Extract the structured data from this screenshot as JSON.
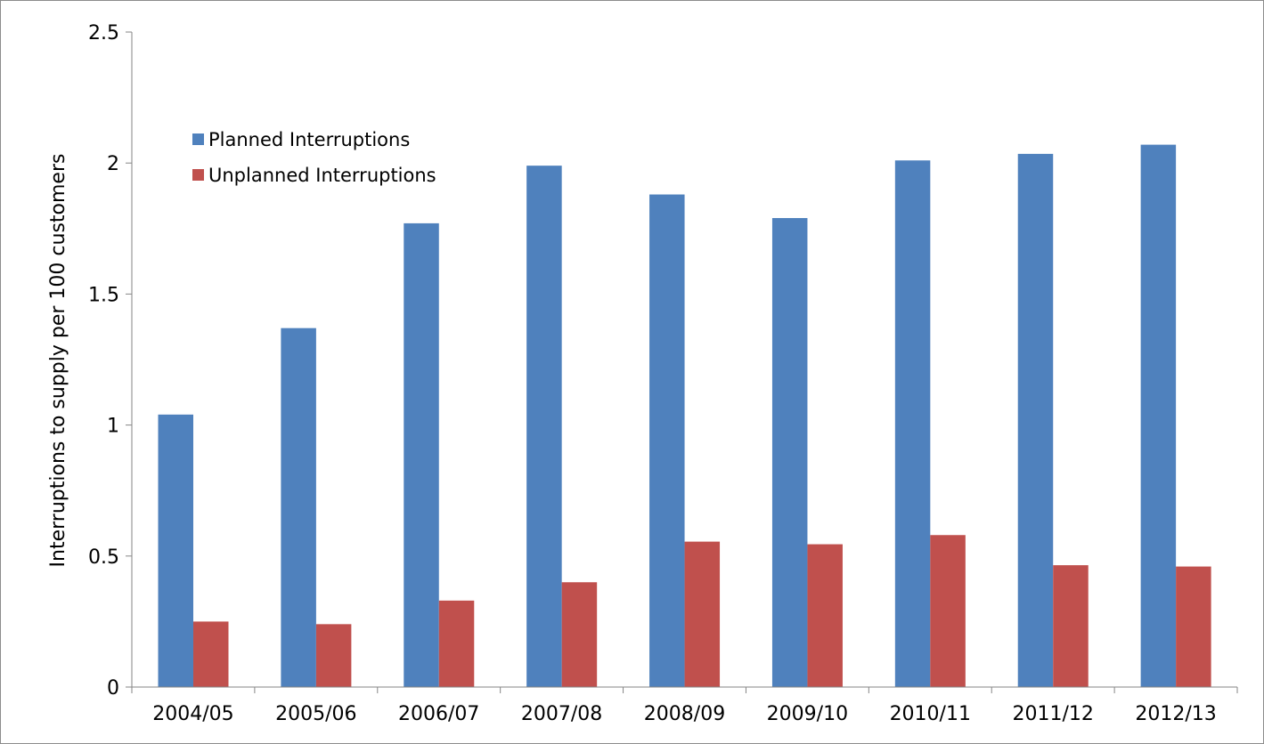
{
  "chart_data": {
    "type": "bar",
    "title": "",
    "xlabel": "",
    "ylabel": "Interruptions to supply per 100 customers",
    "ylim": [
      0,
      2.5
    ],
    "yticks": [
      "0",
      "0.5",
      "1",
      "1.5",
      "2",
      "2.5"
    ],
    "ytick_values": [
      0,
      0.5,
      1,
      1.5,
      2,
      2.5
    ],
    "grid": false,
    "legend_position": "top-left",
    "categories": [
      "2004/05",
      "2005/06",
      "2006/07",
      "2007/08",
      "2008/09",
      "2009/10",
      "2010/11",
      "2011/12",
      "2012/13"
    ],
    "series": [
      {
        "name": "Planned Interruptions",
        "color": "#4f81bd",
        "values": [
          1.04,
          1.37,
          1.77,
          1.99,
          1.88,
          1.79,
          2.01,
          2.035,
          2.07
        ]
      },
      {
        "name": "Unplanned Interruptions",
        "color": "#c0504d",
        "values": [
          0.25,
          0.24,
          0.33,
          0.4,
          0.555,
          0.545,
          0.58,
          0.465,
          0.46
        ]
      }
    ]
  }
}
